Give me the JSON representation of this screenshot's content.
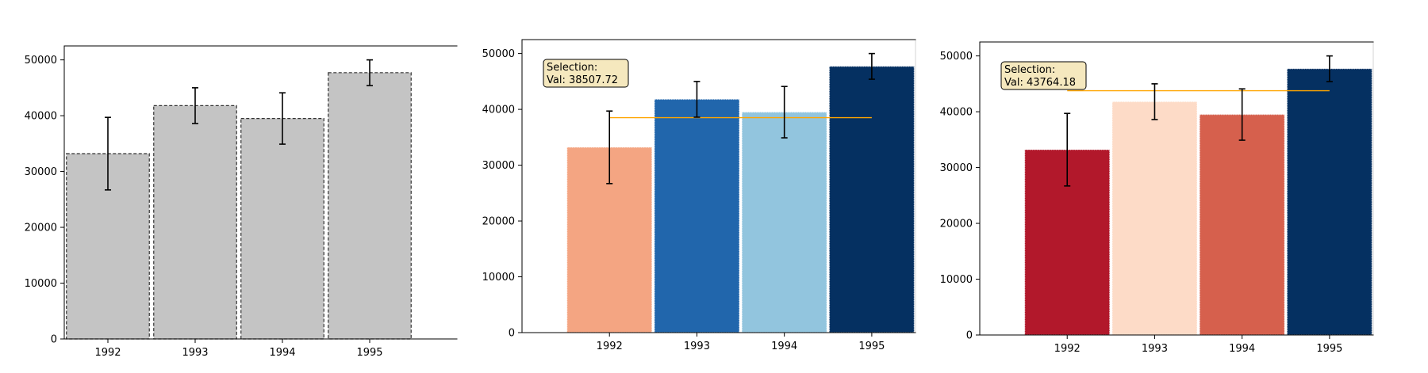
{
  "chart_data": [
    {
      "type": "bar",
      "categories": [
        "1992",
        "1993",
        "1994",
        "1995"
      ],
      "values": [
        33200,
        41800,
        39500,
        47700
      ],
      "errors": [
        6500,
        3200,
        4600,
        2300
      ],
      "colors": [
        "#c4c4c4",
        "#c4c4c4",
        "#c4c4c4",
        "#c4c4c4"
      ],
      "edge_style": "dashed",
      "ylim": [
        0,
        52500
      ],
      "yticks": [
        0,
        10000,
        20000,
        30000,
        40000,
        50000
      ],
      "ytick_labels": [
        "0",
        "10000",
        "20000",
        "30000",
        "40000",
        "50000"
      ],
      "title": "",
      "xlabel": "",
      "ylabel": "",
      "selection": null
    },
    {
      "type": "bar",
      "categories": [
        "1992",
        "1993",
        "1994",
        "1995"
      ],
      "values": [
        33200,
        41800,
        39500,
        47700
      ],
      "errors": [
        6500,
        3200,
        4600,
        2300
      ],
      "colors": [
        "#f4a582",
        "#2166ac",
        "#92c5de",
        "#053061"
      ],
      "edge_style": "dotted",
      "ylim": [
        0,
        52500
      ],
      "yticks": [
        0,
        10000,
        20000,
        30000,
        40000,
        50000
      ],
      "ytick_labels": [
        "0",
        "10000",
        "20000",
        "30000",
        "40000",
        "50000"
      ],
      "title": "",
      "xlabel": "",
      "ylabel": "",
      "selection": {
        "value": 38507.72,
        "label_line1": "Selection:",
        "label_line2": "Val: 38507.72",
        "line_color": "#ffa500"
      }
    },
    {
      "type": "bar",
      "categories": [
        "1992",
        "1993",
        "1994",
        "1995"
      ],
      "values": [
        33200,
        41800,
        39500,
        47700
      ],
      "errors": [
        6500,
        3200,
        4600,
        2300
      ],
      "colors": [
        "#b2182b",
        "#fddbc7",
        "#d6604d",
        "#053061"
      ],
      "edge_style": "dotted",
      "ylim": [
        0,
        52500
      ],
      "yticks": [
        0,
        10000,
        20000,
        30000,
        40000,
        50000
      ],
      "ytick_labels": [
        "0",
        "10000",
        "20000",
        "30000",
        "40000",
        "50000"
      ],
      "title": "",
      "xlabel": "",
      "ylabel": "",
      "selection": {
        "value": 43764.18,
        "label_line1": "Selection:",
        "label_line2": "Val: 43764.18",
        "line_color": "#ffa500"
      }
    }
  ]
}
